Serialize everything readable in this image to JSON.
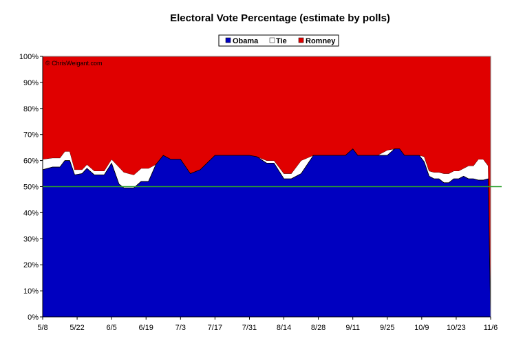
{
  "chart_data": {
    "type": "area",
    "title": "Electoral Vote Percentage (estimate by polls)",
    "watermark": "© ChrisWeigant.com",
    "xlabel": "",
    "ylabel": "",
    "ylim": [
      0,
      100
    ],
    "y_ticks": [
      "0%",
      "10%",
      "20%",
      "30%",
      "40%",
      "50%",
      "60%",
      "70%",
      "80%",
      "90%",
      "100%"
    ],
    "x_ticks": [
      "5/8",
      "5/22",
      "6/5",
      "6/19",
      "7/3",
      "7/17",
      "7/31",
      "8/14",
      "8/28",
      "9/11",
      "9/25",
      "10/9",
      "10/23",
      "11/6"
    ],
    "stacked": true,
    "grid": false,
    "legend_position": "top-center",
    "reference_line": {
      "value": 50,
      "color": "#2ca02c"
    },
    "series_colors": {
      "Obama": "#0000c0",
      "Tie": "#ffffff",
      "Romney": "#e00000"
    },
    "x": [
      0,
      4,
      7,
      9,
      11,
      13,
      16,
      18,
      21,
      25,
      28,
      31,
      33,
      37,
      40,
      43,
      46,
      49,
      52,
      56,
      60,
      64,
      70,
      75,
      80,
      84,
      87,
      91,
      94,
      98,
      101,
      105,
      110,
      114,
      118,
      123,
      126,
      128,
      130,
      133,
      136,
      140,
      143,
      145,
      147,
      149,
      151,
      153,
      155,
      157,
      159,
      161,
      163,
      165,
      167,
      169,
      171,
      173,
      175,
      177,
      179,
      181,
      182
    ],
    "series": [
      {
        "name": "Obama",
        "values": [
          56.5,
          57.5,
          57.5,
          60,
          60,
          54.5,
          55,
          57,
          54.5,
          54.5,
          59,
          51,
          49.5,
          49.5,
          52,
          52,
          58.5,
          62,
          60.5,
          60.5,
          55,
          56.5,
          62,
          62,
          62,
          62,
          61.5,
          59,
          59,
          53,
          53,
          55,
          62,
          62,
          62,
          62,
          64.5,
          62,
          62,
          62,
          62,
          62,
          64.5,
          64.5,
          62,
          62,
          62,
          62,
          59.5,
          54,
          53,
          53,
          51.5,
          51.5,
          53,
          53,
          54,
          53,
          53,
          52.5,
          52.5,
          53,
          0
        ]
      },
      {
        "name": "Tie",
        "values": [
          4,
          3.5,
          3.5,
          3.5,
          3.5,
          2,
          1.5,
          1.5,
          1.5,
          1.5,
          1.5,
          6.5,
          6,
          5,
          5,
          5,
          0,
          0,
          0,
          0,
          0,
          0,
          0,
          0,
          0,
          0,
          0,
          1,
          1,
          2,
          2,
          5,
          0,
          0,
          0,
          0,
          0,
          0,
          0,
          0,
          0,
          2,
          0,
          0,
          0,
          0,
          0,
          0,
          2,
          2,
          2.5,
          2.5,
          3.5,
          3.5,
          3,
          3,
          3,
          5,
          5,
          8,
          8,
          5,
          0
        ]
      },
      {
        "name": "Romney",
        "values": [
          39.5,
          39,
          39,
          36.5,
          36.5,
          43.5,
          43.5,
          41.5,
          44,
          44,
          39.5,
          42.5,
          44.5,
          45.5,
          43,
          43,
          41.5,
          38,
          39.5,
          39.5,
          45,
          43.5,
          38,
          38,
          38,
          38,
          38.5,
          40,
          40,
          45,
          45,
          40,
          38,
          38,
          38,
          38,
          35.5,
          38,
          38,
          38,
          38,
          36,
          35.5,
          35.5,
          38,
          38,
          38,
          38,
          38.5,
          44,
          44.5,
          44.5,
          45,
          45,
          44,
          44,
          43,
          42,
          42,
          39.5,
          39.5,
          42,
          100
        ]
      }
    ]
  }
}
